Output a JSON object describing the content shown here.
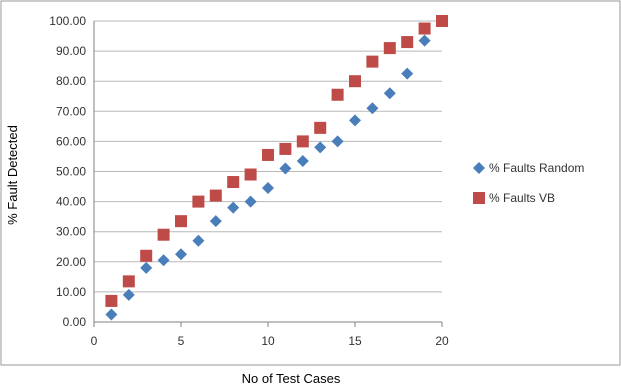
{
  "chart_data": {
    "type": "scatter",
    "xlabel": "No of Test Cases",
    "ylabel": "% Fault Detected",
    "xlim": [
      0,
      20
    ],
    "ylim": [
      0,
      100
    ],
    "x_ticks": [
      "0",
      "5",
      "10",
      "15",
      "20"
    ],
    "y_ticks": [
      "0.00",
      "10.00",
      "20.00",
      "30.00",
      "40.00",
      "50.00",
      "60.00",
      "70.00",
      "80.00",
      "90.00",
      "100.00"
    ],
    "grid": "horizontal",
    "legend_position": "right",
    "series": [
      {
        "name": "% Faults Random",
        "marker": "diamond",
        "color": "#4a7ebb",
        "x": [
          1,
          2,
          3,
          4,
          5,
          6,
          7,
          8,
          9,
          10,
          11,
          12,
          13,
          14,
          15,
          16,
          17,
          18,
          19
        ],
        "y": [
          2.5,
          9,
          18,
          20.5,
          22.5,
          27,
          33.5,
          38,
          40,
          44.5,
          51,
          53.5,
          58,
          60,
          67,
          71,
          76,
          82.5,
          93.5
        ]
      },
      {
        "name": "% Faults VB",
        "marker": "square",
        "color": "#be4b48",
        "x": [
          1,
          2,
          3,
          4,
          5,
          6,
          7,
          8,
          9,
          10,
          11,
          12,
          13,
          14,
          15,
          16,
          17,
          18,
          19,
          20
        ],
        "y": [
          7,
          13.5,
          22,
          29,
          33.5,
          40,
          42,
          46.5,
          49,
          55.5,
          57.5,
          60,
          64.5,
          75.5,
          80,
          86.5,
          91,
          93,
          97.5,
          100
        ]
      }
    ]
  }
}
